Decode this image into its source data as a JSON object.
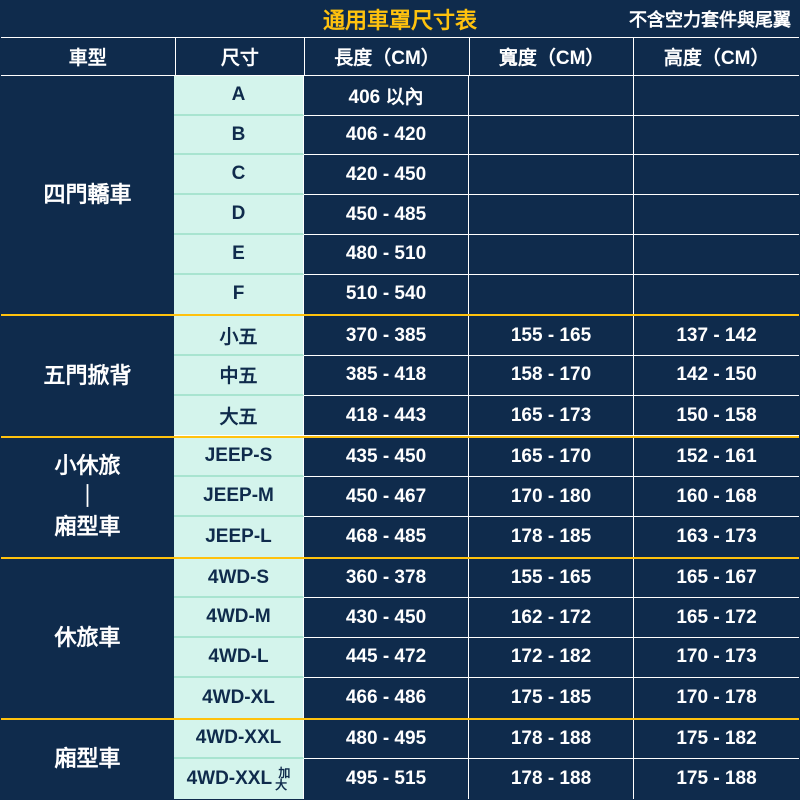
{
  "title": "通用車罩尺寸表",
  "subtitle": "不含空力套件與尾翼",
  "headers": {
    "category": "車型",
    "size": "尺寸",
    "length": "長度（CM）",
    "width": "寬度（CM）",
    "height": "高度（CM）"
  },
  "colors": {
    "primary_bg": "#0f2b4c",
    "title_color": "#ffc20e",
    "size_bg": "#d4f4ec",
    "size_border": "#a8e4d0",
    "text_light": "#ffffff",
    "group_divider": "#ffc20e"
  },
  "typography": {
    "title_fontsize": 22,
    "header_fontsize": 19,
    "cell_fontsize": 19,
    "category_fontsize": 22
  },
  "column_widths": {
    "category": 175,
    "size": 130,
    "length": 165,
    "width": 165,
    "height": 165
  },
  "groups": [
    {
      "category": "四門轎車",
      "rows": [
        {
          "size": "A",
          "length": "406 以內",
          "width": "",
          "height": ""
        },
        {
          "size": "B",
          "length": "406 - 420",
          "width": "",
          "height": ""
        },
        {
          "size": "C",
          "length": "420 - 450",
          "width": "",
          "height": ""
        },
        {
          "size": "D",
          "length": "450 - 485",
          "width": "",
          "height": ""
        },
        {
          "size": "E",
          "length": "480 - 510",
          "width": "",
          "height": ""
        },
        {
          "size": "F",
          "length": "510 - 540",
          "width": "",
          "height": ""
        }
      ]
    },
    {
      "category": "五門掀背",
      "rows": [
        {
          "size": "小五",
          "length": "370 - 385",
          "width": "155 - 165",
          "height": "137 - 142"
        },
        {
          "size": "中五",
          "length": "385 - 418",
          "width": "158 - 170",
          "height": "142 - 150"
        },
        {
          "size": "大五",
          "length": "418 - 443",
          "width": "165 - 173",
          "height": "150 - 158"
        }
      ]
    },
    {
      "category": "小休旅\n｜\n廂型車",
      "rows": [
        {
          "size": "JEEP-S",
          "length": "435 - 450",
          "width": "165 - 170",
          "height": "152 - 161"
        },
        {
          "size": "JEEP-M",
          "length": "450 - 467",
          "width": "170 - 180",
          "height": "160 - 168"
        },
        {
          "size": "JEEP-L",
          "length": "468 - 485",
          "width": "178 - 185",
          "height": "163 - 173"
        }
      ]
    },
    {
      "category": "休旅車",
      "rows": [
        {
          "size": "4WD-S",
          "length": "360 - 378",
          "width": "155 - 165",
          "height": "165 - 167"
        },
        {
          "size": "4WD-M",
          "length": "430 - 450",
          "width": "162 - 172",
          "height": "165 - 172"
        },
        {
          "size": "4WD-L",
          "length": "445 - 472",
          "width": "172 - 182",
          "height": "170 - 173"
        },
        {
          "size": "4WD-XL",
          "length": "466 - 486",
          "width": "175 - 185",
          "height": "170 - 178"
        }
      ]
    },
    {
      "category": "廂型車",
      "rows": [
        {
          "size": "4WD-XXL",
          "length": "480 - 495",
          "width": "178 - 188",
          "height": "175 - 182"
        },
        {
          "size": "4WD-XXL",
          "size_suffix": "加\n大",
          "length": "495 - 515",
          "width": "178 - 188",
          "height": "175 - 188"
        }
      ]
    }
  ]
}
